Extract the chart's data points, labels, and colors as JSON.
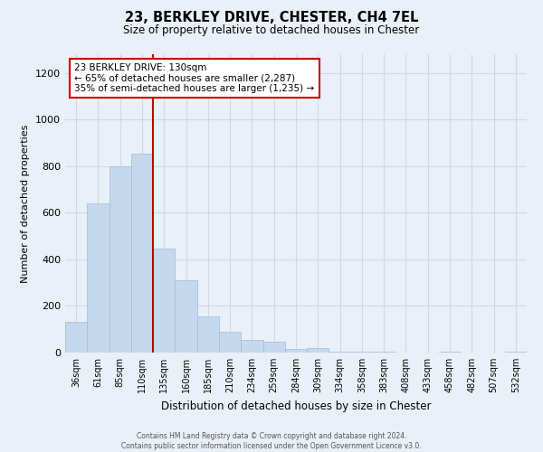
{
  "title": "23, BERKLEY DRIVE, CHESTER, CH4 7EL",
  "subtitle": "Size of property relative to detached houses in Chester",
  "xlabel": "Distribution of detached houses by size in Chester",
  "ylabel": "Number of detached properties",
  "bar_labels": [
    "36sqm",
    "61sqm",
    "85sqm",
    "110sqm",
    "135sqm",
    "160sqm",
    "185sqm",
    "210sqm",
    "234sqm",
    "259sqm",
    "284sqm",
    "309sqm",
    "334sqm",
    "358sqm",
    "383sqm",
    "408sqm",
    "433sqm",
    "458sqm",
    "482sqm",
    "507sqm",
    "532sqm"
  ],
  "bar_values": [
    130,
    640,
    800,
    855,
    445,
    310,
    155,
    90,
    55,
    45,
    15,
    20,
    5,
    5,
    5,
    0,
    0,
    5,
    0,
    0,
    5
  ],
  "bar_color": "#c5d8ee",
  "bar_edge_color": "#a0bbd8",
  "vline_color": "#cc0000",
  "annotation_title": "23 BERKLEY DRIVE: 130sqm",
  "annotation_line1": "← 65% of detached houses are smaller (2,287)",
  "annotation_line2": "35% of semi-detached houses are larger (1,235) →",
  "annotation_box_color": "#ffffff",
  "annotation_box_edge": "#cc0000",
  "ylim": [
    0,
    1280
  ],
  "yticks": [
    0,
    200,
    400,
    600,
    800,
    1000,
    1200
  ],
  "grid_color": "#d0d8e8",
  "bg_color": "#eaf0f8",
  "footnote1": "Contains HM Land Registry data © Crown copyright and database right 2024.",
  "footnote2": "Contains public sector information licensed under the Open Government Licence v3.0."
}
